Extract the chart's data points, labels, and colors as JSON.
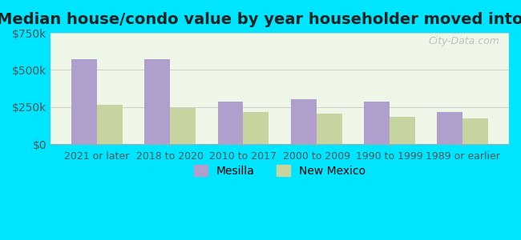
{
  "title": "Median house/condo value by year householder moved into unit",
  "categories": [
    "2021 or later",
    "2018 to 2020",
    "2010 to 2017",
    "2000 to 2009",
    "1990 to 1999",
    "1989 or earlier"
  ],
  "mesilla_values": [
    575000,
    570000,
    285000,
    305000,
    285000,
    215000
  ],
  "newmexico_values": [
    265000,
    245000,
    215000,
    205000,
    185000,
    175000
  ],
  "mesilla_color": "#b09fcc",
  "newmexico_color": "#c8d4a0",
  "background_outer": "#00e5ff",
  "background_inner": "#eef6e8",
  "ylim": [
    0,
    750000
  ],
  "yticks": [
    0,
    250000,
    500000,
    750000
  ],
  "ytick_labels": [
    "$0",
    "$250k",
    "$500k",
    "$750k"
  ],
  "bar_width": 0.35,
  "legend_mesilla": "Mesilla",
  "legend_newmexico": "New Mexico",
  "watermark": "City-Data.com",
  "title_fontsize": 14,
  "axis_fontsize": 10,
  "legend_fontsize": 10
}
